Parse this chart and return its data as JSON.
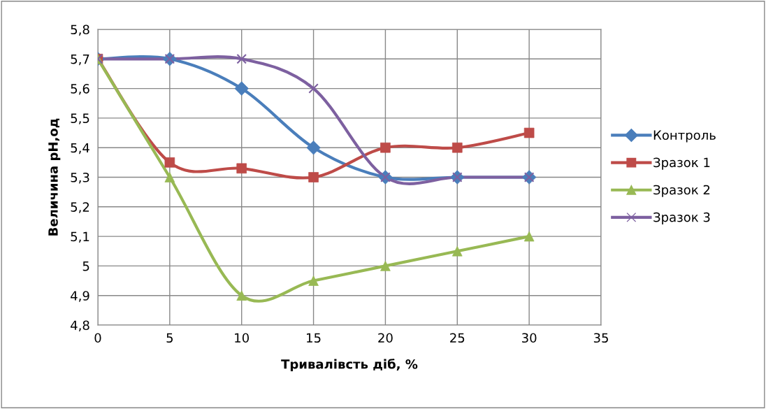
{
  "chart_data": {
    "type": "line",
    "xlabel": "Тривалівсть діб, %",
    "ylabel": "Величина pH,од",
    "x": [
      0,
      5,
      10,
      15,
      20,
      25,
      30
    ],
    "series": [
      {
        "name": "Контроль",
        "color": "#4a7ebb",
        "marker": "diamond",
        "values": [
          5.7,
          5.7,
          5.6,
          5.4,
          5.3,
          5.3,
          5.3
        ]
      },
      {
        "name": "Зразок 1",
        "color": "#be4b48",
        "marker": "square",
        "values": [
          5.7,
          5.35,
          5.33,
          5.3,
          5.4,
          5.4,
          5.45
        ]
      },
      {
        "name": "Зразок 2",
        "color": "#98b954",
        "marker": "triangle",
        "values": [
          5.7,
          5.3,
          4.9,
          4.95,
          5.0,
          5.05,
          5.1
        ]
      },
      {
        "name": "Зразок 3",
        "color": "#7d60a0",
        "marker": "cross",
        "values": [
          5.7,
          5.7,
          5.7,
          5.6,
          5.3,
          5.3,
          5.3
        ]
      }
    ],
    "xlim": [
      0,
      35
    ],
    "xticks": [
      0,
      5,
      10,
      15,
      20,
      25,
      30,
      35
    ],
    "ylim": [
      4.8,
      5.8
    ],
    "yticks": [
      {
        "value": 4.8,
        "label": "4,8"
      },
      {
        "value": 4.9,
        "label": "4,9"
      },
      {
        "value": 5,
        "label": "5"
      },
      {
        "value": 5.1,
        "label": "5,1"
      },
      {
        "value": 5.2,
        "label": "5,2"
      },
      {
        "value": 5.3,
        "label": "5,3"
      },
      {
        "value": 5.4,
        "label": "5,4"
      },
      {
        "value": 5.5,
        "label": "5,5"
      },
      {
        "value": 5.6,
        "label": "5,6"
      },
      {
        "value": 5.7,
        "label": "5,7"
      },
      {
        "value": 5.8,
        "label": "5,8"
      }
    ],
    "grid": true,
    "legend": "right",
    "line_style": "solid"
  }
}
